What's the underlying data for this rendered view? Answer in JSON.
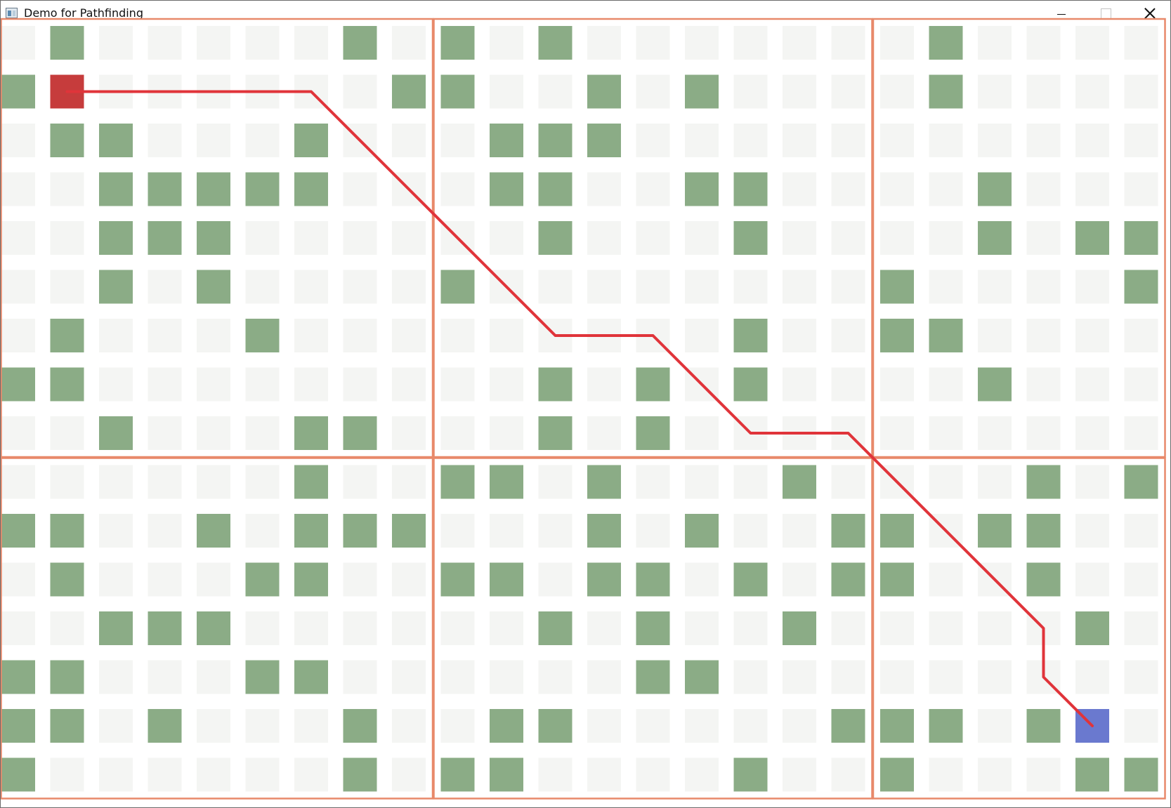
{
  "window": {
    "title": "Demo for Pathfinding"
  },
  "colors": {
    "empty": "#f4f5f3",
    "wall": "#8bac86",
    "start": "#c63c3c",
    "goal": "#6a79cf",
    "path": "#e0343a",
    "region_border": "#e8896a"
  },
  "grid": {
    "cols": 24,
    "rows": 16,
    "region_columns": [
      [
        0,
        8
      ],
      [
        9,
        17
      ],
      [
        18,
        23
      ]
    ],
    "region_rows": [
      [
        0,
        8
      ],
      [
        9,
        15
      ]
    ],
    "walls": [
      [
        1,
        0
      ],
      [
        7,
        0
      ],
      [
        9,
        0
      ],
      [
        11,
        0
      ],
      [
        19,
        0
      ],
      [
        0,
        1
      ],
      [
        8,
        1
      ],
      [
        9,
        1
      ],
      [
        12,
        1
      ],
      [
        14,
        1
      ],
      [
        19,
        1
      ],
      [
        1,
        2
      ],
      [
        2,
        2
      ],
      [
        6,
        2
      ],
      [
        10,
        2
      ],
      [
        11,
        2
      ],
      [
        12,
        2
      ],
      [
        2,
        3
      ],
      [
        3,
        3
      ],
      [
        4,
        3
      ],
      [
        5,
        3
      ],
      [
        6,
        3
      ],
      [
        10,
        3
      ],
      [
        11,
        3
      ],
      [
        14,
        3
      ],
      [
        15,
        3
      ],
      [
        20,
        3
      ],
      [
        2,
        4
      ],
      [
        3,
        4
      ],
      [
        4,
        4
      ],
      [
        11,
        4
      ],
      [
        15,
        4
      ],
      [
        20,
        4
      ],
      [
        22,
        4
      ],
      [
        23,
        4
      ],
      [
        2,
        5
      ],
      [
        4,
        5
      ],
      [
        9,
        5
      ],
      [
        18,
        5
      ],
      [
        23,
        5
      ],
      [
        1,
        6
      ],
      [
        5,
        6
      ],
      [
        15,
        6
      ],
      [
        18,
        6
      ],
      [
        19,
        6
      ],
      [
        0,
        7
      ],
      [
        1,
        7
      ],
      [
        11,
        7
      ],
      [
        13,
        7
      ],
      [
        15,
        7
      ],
      [
        20,
        7
      ],
      [
        2,
        8
      ],
      [
        6,
        8
      ],
      [
        7,
        8
      ],
      [
        11,
        8
      ],
      [
        13,
        8
      ],
      [
        6,
        9
      ],
      [
        9,
        9
      ],
      [
        10,
        9
      ],
      [
        12,
        9
      ],
      [
        16,
        9
      ],
      [
        21,
        9
      ],
      [
        23,
        9
      ],
      [
        0,
        10
      ],
      [
        1,
        10
      ],
      [
        4,
        10
      ],
      [
        6,
        10
      ],
      [
        7,
        10
      ],
      [
        8,
        10
      ],
      [
        12,
        10
      ],
      [
        14,
        10
      ],
      [
        17,
        10
      ],
      [
        18,
        10
      ],
      [
        20,
        10
      ],
      [
        21,
        10
      ],
      [
        1,
        11
      ],
      [
        5,
        11
      ],
      [
        6,
        11
      ],
      [
        9,
        11
      ],
      [
        10,
        11
      ],
      [
        12,
        11
      ],
      [
        13,
        11
      ],
      [
        15,
        11
      ],
      [
        17,
        11
      ],
      [
        18,
        11
      ],
      [
        21,
        11
      ],
      [
        2,
        12
      ],
      [
        3,
        12
      ],
      [
        4,
        12
      ],
      [
        11,
        12
      ],
      [
        13,
        12
      ],
      [
        16,
        12
      ],
      [
        22,
        12
      ],
      [
        0,
        13
      ],
      [
        1,
        13
      ],
      [
        5,
        13
      ],
      [
        6,
        13
      ],
      [
        13,
        13
      ],
      [
        14,
        13
      ],
      [
        0,
        14
      ],
      [
        1,
        14
      ],
      [
        3,
        14
      ],
      [
        7,
        14
      ],
      [
        10,
        14
      ],
      [
        11,
        14
      ],
      [
        17,
        14
      ],
      [
        18,
        14
      ],
      [
        19,
        14
      ],
      [
        21,
        14
      ],
      [
        0,
        15
      ],
      [
        7,
        15
      ],
      [
        9,
        15
      ],
      [
        10,
        15
      ],
      [
        15,
        15
      ],
      [
        18,
        15
      ],
      [
        22,
        15
      ],
      [
        23,
        15
      ]
    ],
    "start": [
      1,
      1
    ],
    "goal": [
      22,
      14
    ],
    "path": [
      [
        1,
        1
      ],
      [
        6,
        1
      ],
      [
        11,
        6
      ],
      [
        13,
        6
      ],
      [
        15,
        8
      ],
      [
        17,
        8
      ],
      [
        21,
        12
      ],
      [
        21,
        13
      ],
      [
        22,
        14
      ]
    ]
  }
}
